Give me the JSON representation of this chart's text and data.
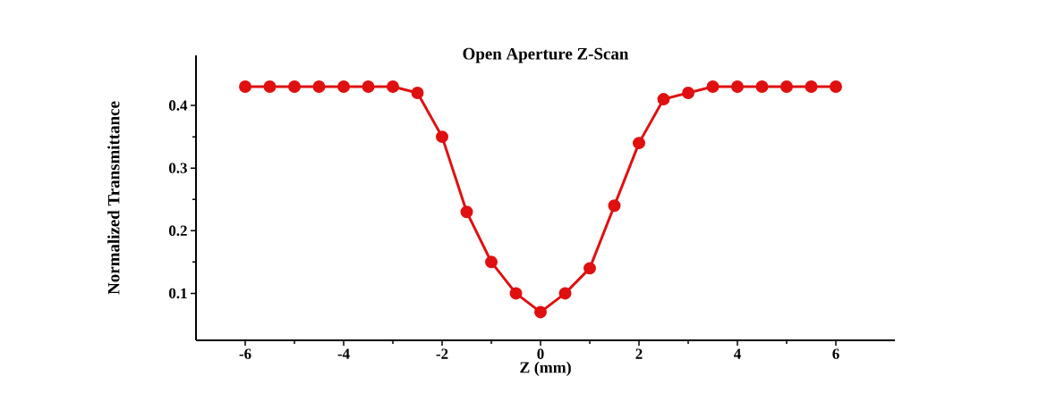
{
  "chart_data": {
    "type": "line",
    "title": "Open Aperture Z-Scan",
    "xlabel": "Z (mm)",
    "ylabel": "Normalized Transmittance",
    "x": [
      -6,
      -5.5,
      -5,
      -4.5,
      -4,
      -3.5,
      -3,
      -2.5,
      -2,
      -1.5,
      -1,
      -0.5,
      0,
      0.5,
      1,
      1.5,
      2,
      2.5,
      3,
      3.5,
      4,
      4.5,
      5,
      5.5,
      6
    ],
    "series": [
      {
        "color": "#e01010",
        "values": [
          0.43,
          0.43,
          0.43,
          0.43,
          0.43,
          0.43,
          0.43,
          0.42,
          0.35,
          0.23,
          0.15,
          0.1,
          0.07,
          0.1,
          0.14,
          0.24,
          0.34,
          0.41,
          0.42,
          0.43,
          0.43,
          0.43,
          0.43,
          0.43,
          0.43
        ]
      }
    ],
    "xlim": [
      -7,
      7.2
    ],
    "ylim": [
      0.025,
      0.48
    ],
    "xticks": [
      -6,
      -4,
      -2,
      0,
      2,
      4,
      6
    ],
    "yticks": [
      0.1,
      0.2,
      0.3,
      0.4
    ],
    "marker": "circle",
    "line_style": "solid"
  }
}
